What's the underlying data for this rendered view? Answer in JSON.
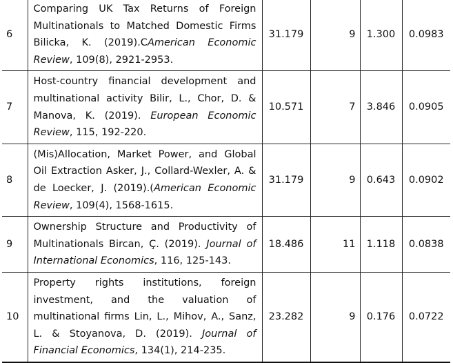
{
  "table": {
    "rows": [
      {
        "index": "6",
        "reference": {
          "text": "Comparing UK Tax Returns of Foreign Multinationals to Matched Domestic Firms Bilicka, K. (2019).C",
          "journal": "American Economic Review",
          "details": ", 109(8), 2921-2953."
        },
        "cells": [
          "31.179",
          "9",
          "1.300",
          "0.0983"
        ]
      },
      {
        "index": "7",
        "reference": {
          "text": "Host-country financial development and multinational activity Bilir, L., Chor, D. & Manova, K. (2019). ",
          "journal": "European Economic Review",
          "details": ", 115, 192-220."
        },
        "cells": [
          "10.571",
          "7",
          "3.846",
          "0.0905"
        ]
      },
      {
        "index": "8",
        "reference": {
          "text": "(Mis)Allocation, Market Power, and Global Oil Extraction Asker, J., Collard-Wexler, A. & de Loecker, J. (2019).(",
          "journal": "American Economic Review",
          "details": ", 109(4), 1568-1615."
        },
        "cells": [
          "31.179",
          "9",
          "0.643",
          "0.0902"
        ]
      },
      {
        "index": "9",
        "reference": {
          "text": "Ownership Structure and Productivity of Multinationals Bircan, Ç. (2019). ",
          "journal": "Journal of International Economics",
          "details": ", 116, 125-143."
        },
        "cells": [
          "18.486",
          "11",
          "1.118",
          "0.0838"
        ]
      },
      {
        "index": "10",
        "reference": {
          "text": "Property rights institutions, foreign investment, and the valuation of multinational firms Lin, L., Mihov, A., Sanz, L. & Stoyanova, D. (2019). ",
          "journal": "Journal of Financial Economics",
          "details": ", 134(1), 214-235."
        },
        "cells": [
          "23.282",
          "9",
          "0.176",
          "0.0722"
        ]
      }
    ]
  }
}
